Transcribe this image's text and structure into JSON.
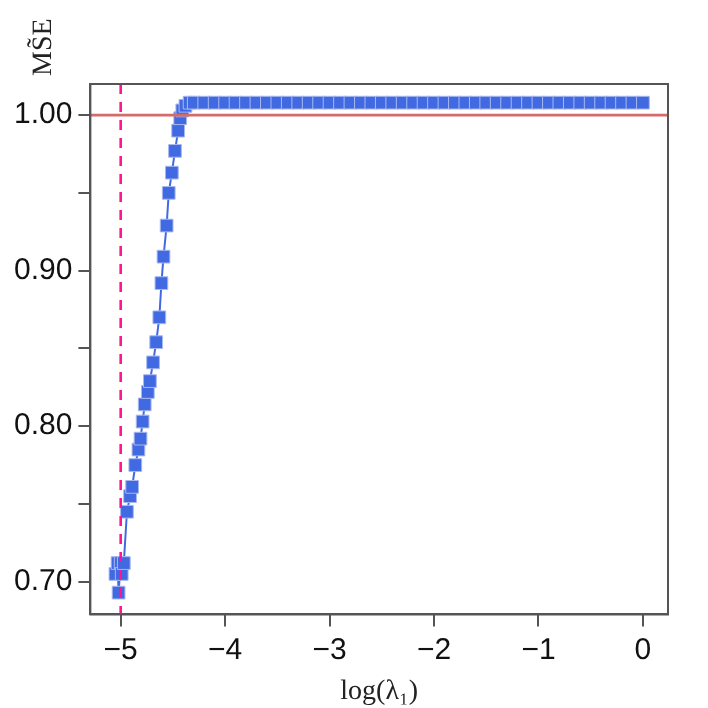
{
  "chart_data": {
    "type": "line",
    "ylabel": "MS̃E",
    "xlabel": "log(λ₁)",
    "x": [
      -5.05,
      -5.03,
      -5.02,
      -5.0,
      -4.99,
      -4.97,
      -4.94,
      -4.91,
      -4.89,
      -4.86,
      -4.83,
      -4.81,
      -4.79,
      -4.77,
      -4.74,
      -4.72,
      -4.69,
      -4.66,
      -4.63,
      -4.61,
      -4.59,
      -4.56,
      -4.54,
      -4.51,
      -4.48,
      -4.45,
      -4.43,
      -4.41,
      -4.38,
      -4.34,
      -4.3,
      -4.2,
      -4.1,
      -4.0,
      -3.9,
      -3.8,
      -3.7,
      -3.6,
      -3.5,
      -3.4,
      -3.3,
      -3.2,
      -3.1,
      -3.0,
      -2.9,
      -2.8,
      -2.7,
      -2.6,
      -2.5,
      -2.4,
      -2.3,
      -2.2,
      -2.1,
      -2.0,
      -1.9,
      -1.8,
      -1.7,
      -1.6,
      -1.5,
      -1.4,
      -1.3,
      -1.2,
      -1.1,
      -1.0,
      -0.9,
      -0.8,
      -0.7,
      -0.6,
      -0.5,
      -0.4,
      -0.3,
      -0.2,
      -0.1,
      0.0
    ],
    "series": [
      {
        "color": "#4169e1",
        "values": [
          0.705,
          0.712,
          0.693,
          0.712,
          0.705,
          0.712,
          0.745,
          0.755,
          0.761,
          0.775,
          0.785,
          0.792,
          0.803,
          0.814,
          0.822,
          0.829,
          0.841,
          0.854,
          0.87,
          0.892,
          0.909,
          0.929,
          0.95,
          0.963,
          0.977,
          0.99,
          0.998,
          1.003,
          1.006,
          1.008,
          1.008,
          1.008,
          1.008,
          1.008,
          1.008,
          1.008,
          1.008,
          1.008,
          1.008,
          1.008,
          1.008,
          1.008,
          1.008,
          1.008,
          1.008,
          1.008,
          1.008,
          1.008,
          1.008,
          1.008,
          1.008,
          1.008,
          1.008,
          1.008,
          1.008,
          1.008,
          1.008,
          1.008,
          1.008,
          1.008,
          1.008,
          1.008,
          1.008,
          1.008,
          1.008,
          1.008,
          1.008,
          1.008,
          1.008,
          1.008,
          1.008,
          1.008,
          1.008,
          1.008
        ]
      }
    ],
    "xlim": [
      -5.29,
      0.24
    ],
    "ylim": [
      0.679,
      1.02
    ],
    "xticks": [
      {
        "value": -5,
        "label": "−5"
      },
      {
        "value": -4,
        "label": "−4"
      },
      {
        "value": -3,
        "label": "−3"
      },
      {
        "value": -2,
        "label": "−2"
      },
      {
        "value": -1,
        "label": "−1"
      },
      0
    ],
    "yticks": [
      {
        "value": 0.7,
        "label": "0.70"
      },
      {
        "value": 0.75,
        "label": null
      },
      {
        "value": 0.8,
        "label": "0.80"
      },
      {
        "value": 0.85,
        "label": null
      },
      {
        "value": 0.9,
        "label": "0.90"
      },
      {
        "value": 0.95,
        "label": null
      },
      {
        "value": 1.0,
        "label": "1.00"
      }
    ],
    "ref_lines": [
      {
        "axis": "y",
        "value": 1.0,
        "color": "#d46a6a",
        "line_style": "solid"
      },
      {
        "axis": "x",
        "value": -5,
        "color": "#ff1493",
        "line_style": "dashed"
      }
    ],
    "grid": false,
    "legend": false,
    "marker": "square",
    "line_style": "solid"
  }
}
